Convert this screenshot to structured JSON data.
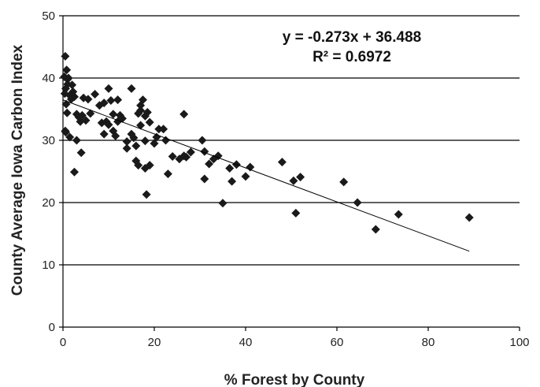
{
  "chart_data": {
    "type": "scatter",
    "xlabel": "% Forest by County",
    "ylabel": "County Average Iowa Carbon Index",
    "xlim": [
      0,
      100
    ],
    "ylim": [
      0,
      50
    ],
    "x_ticks": [
      0,
      20,
      40,
      60,
      80,
      100
    ],
    "y_ticks": [
      0,
      10,
      20,
      30,
      40,
      50
    ],
    "grid": "horizontal",
    "legend": "none",
    "marker_color": "#1a1a1a",
    "annotations": {
      "equation": "y = -0.273x + 36.488",
      "r_squared": "R² = 0.6972"
    },
    "trendline": {
      "slope": -0.273,
      "intercept": 36.488,
      "x_range": [
        0,
        89
      ]
    },
    "series": [
      {
        "x": [
          0.5,
          0.8,
          0.3,
          1.2,
          1.0,
          0.6,
          0.4,
          2.0,
          1.5,
          0.7,
          0.9,
          2.5,
          3.0,
          1.8,
          0.5,
          0.6,
          1.0,
          2.2,
          3.5,
          4.5,
          4.2,
          3.8,
          5.0,
          5.5,
          6.0,
          7.0,
          8.0,
          8.5,
          9.0,
          9.5,
          10.0,
          10.5,
          11.0,
          11.5,
          12.0,
          12.5,
          9.0,
          10.0,
          11.0,
          12.0,
          13.0,
          14.0,
          15.0,
          15.5,
          16.0,
          16.5,
          17.0,
          17.5,
          18.0,
          18.5,
          19.0,
          14.0,
          15.0,
          16.0,
          17.0,
          18.0,
          19.0,
          20.0,
          21.0,
          22.0,
          16.5,
          17.0,
          18.0,
          18.3,
          20.5,
          22.5,
          23.0,
          24.0,
          25.5,
          26.5,
          27.0,
          28.0,
          30.5,
          31.0,
          32.0,
          33.0,
          34.0,
          31.0,
          35.0,
          36.5,
          37.0,
          38.0,
          40.0,
          41.0,
          3.0,
          4.0,
          2.5,
          1.5,
          26.5,
          48.0,
          50.5,
          51.0,
          52.0,
          61.5,
          64.5,
          68.5,
          73.5,
          89.0
        ],
        "y": [
          43.5,
          41.3,
          40.2,
          40.0,
          39.0,
          38.3,
          37.5,
          38.9,
          37.2,
          35.8,
          34.4,
          37.0,
          34.2,
          36.6,
          31.5,
          31.3,
          39.8,
          37.8,
          33.7,
          36.8,
          34.0,
          33.0,
          33.2,
          36.6,
          34.3,
          37.4,
          35.6,
          32.8,
          31.0,
          33.0,
          38.3,
          36.4,
          31.5,
          30.7,
          36.5,
          34.0,
          36.0,
          32.5,
          34.2,
          33.0,
          33.5,
          28.7,
          38.3,
          30.4,
          29.1,
          34.3,
          34.8,
          36.5,
          33.9,
          34.5,
          32.9,
          29.8,
          31.0,
          26.7,
          32.4,
          29.9,
          26.0,
          29.5,
          31.8,
          31.8,
          26.0,
          35.6,
          25.5,
          21.3,
          30.5,
          30.0,
          24.6,
          27.4,
          27.0,
          34.2,
          27.3,
          28.1,
          30.0,
          28.2,
          26.2,
          27.0,
          27.5,
          23.8,
          19.9,
          25.5,
          23.4,
          26.1,
          24.2,
          25.7,
          30.0,
          28.0,
          24.9,
          30.5,
          27.5,
          26.5,
          23.5,
          18.3,
          24.1,
          23.3,
          20.0,
          15.7,
          18.1,
          17.6
        ]
      }
    ]
  }
}
